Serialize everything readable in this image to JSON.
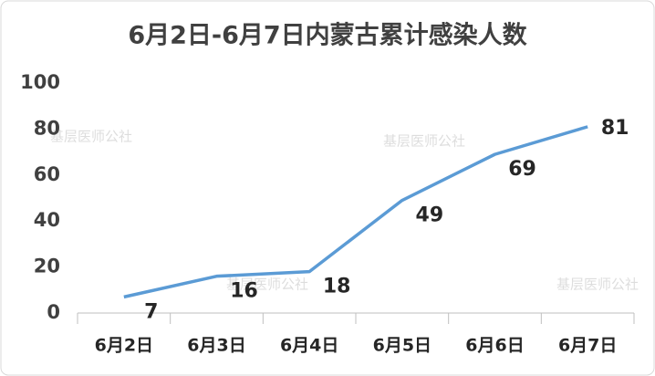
{
  "chart_data": {
    "type": "line",
    "title": "6月2日-6月7日内蒙古累计感染人数",
    "categories": [
      "6月2日",
      "6月3日",
      "6月4日",
      "6月5日",
      "6月6日",
      "6月7日"
    ],
    "series": [
      {
        "name": "累计感染人数",
        "color": "#5b9bd5",
        "values": [
          7,
          16,
          18,
          49,
          69,
          81
        ]
      }
    ],
    "ylim": [
      0,
      100
    ],
    "yticks": [
      0,
      20,
      40,
      60,
      80,
      100
    ],
    "grid": false,
    "watermark": "基层医师公社"
  }
}
